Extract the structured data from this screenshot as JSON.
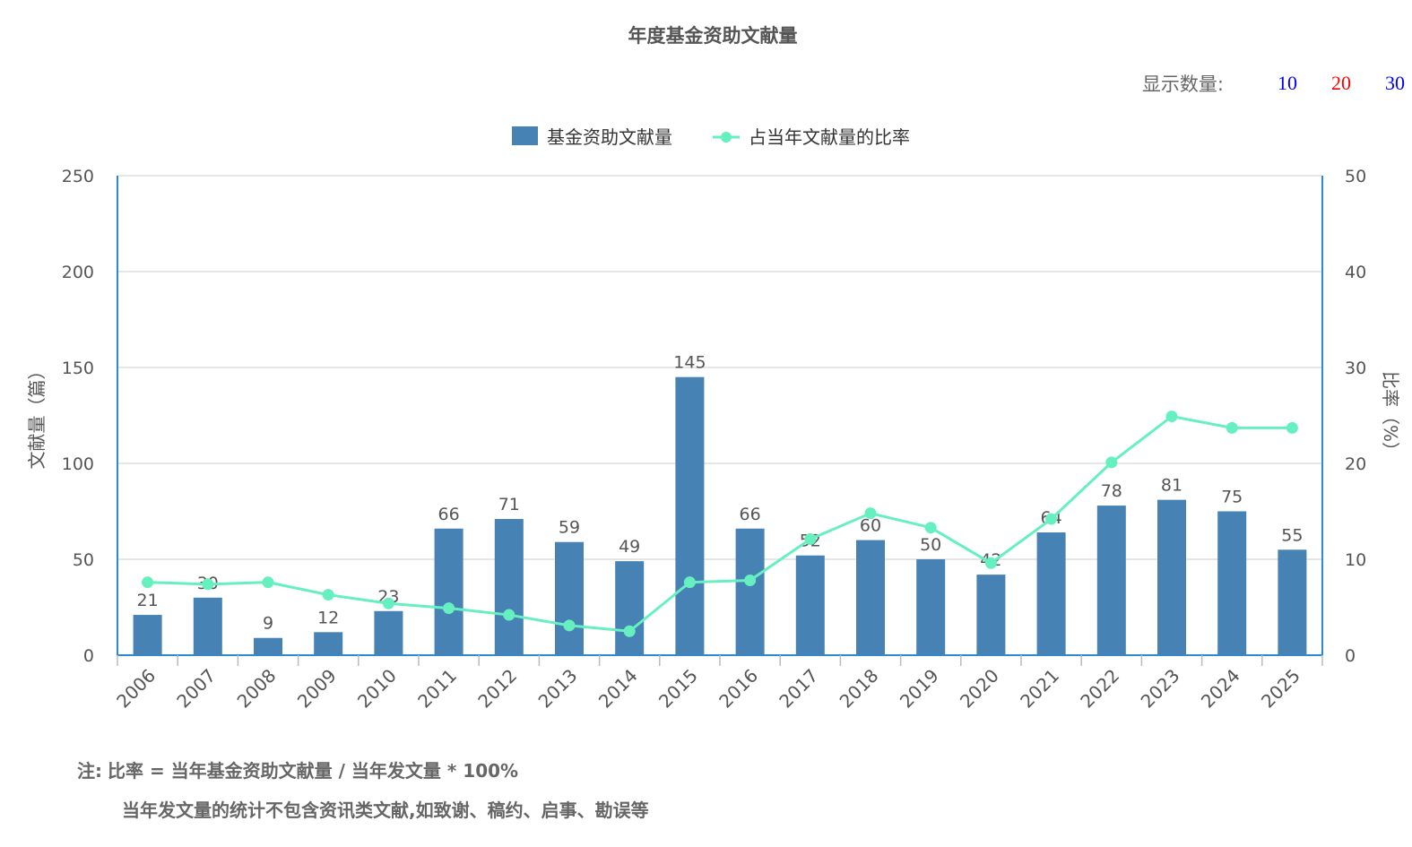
{
  "header": {
    "title": "年度基金资助文献量",
    "count_label": "显示数量:",
    "count_options": [
      {
        "label": "10",
        "color": "#0000ff"
      },
      {
        "label": "20",
        "color": "#ff0000"
      },
      {
        "label": "30",
        "color": "#0000ff"
      }
    ]
  },
  "legend": {
    "bar_label": "基金资助文献量",
    "line_label": "占当年文献量的比率"
  },
  "colors": {
    "bar": "#4682b4",
    "line": "#66f0c0",
    "axis": "#2a8ad4",
    "grid": "#dddddd",
    "text": "#555555"
  },
  "chart_data": {
    "type": "bar",
    "title": "年度基金资助文献量",
    "xlabel": "",
    "ylabel": "文献量（篇）",
    "ylabel_right": "比率（%）",
    "categories": [
      "2006",
      "2007",
      "2008",
      "2009",
      "2010",
      "2011",
      "2012",
      "2013",
      "2014",
      "2015",
      "2016",
      "2017",
      "2018",
      "2019",
      "2020",
      "2021",
      "2022",
      "2023",
      "2024",
      "2025"
    ],
    "ylim": [
      0,
      250
    ],
    "yticks": [
      0,
      50,
      100,
      150,
      200,
      250
    ],
    "ylim_right": [
      0,
      50
    ],
    "yticks_right": [
      0,
      10,
      20,
      30,
      40,
      50
    ],
    "grid": true,
    "legend_position": "top",
    "series": [
      {
        "name": "基金资助文献量",
        "type": "bar",
        "axis": "left",
        "values": [
          21,
          30,
          9,
          12,
          23,
          66,
          71,
          59,
          49,
          145,
          66,
          52,
          60,
          50,
          42,
          64,
          78,
          81,
          75,
          55
        ]
      },
      {
        "name": "占当年文献量的比率",
        "type": "line",
        "axis": "right",
        "values": [
          7.6,
          7.4,
          7.6,
          6.3,
          5.4,
          4.9,
          4.2,
          3.1,
          2.5,
          7.6,
          7.8,
          12.1,
          14.8,
          13.3,
          9.6,
          14.2,
          20.1,
          24.9,
          23.7,
          23.7
        ]
      }
    ]
  },
  "note": {
    "label": "注:",
    "line1": "比率 = 当年基金资助文献量 / 当年发文量 * 100%",
    "line2": "当年发文量的统计不包含资讯类文献,如致谢、稿约、启事、勘误等"
  }
}
